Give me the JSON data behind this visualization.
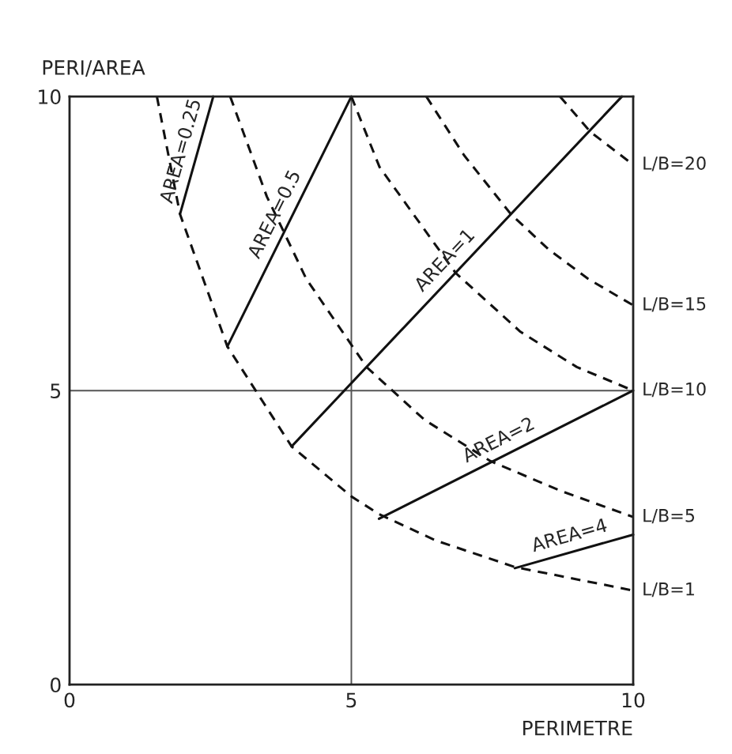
{
  "chart_data": {
    "type": "line",
    "xlabel": "PERIMETRE",
    "ylabel": "PERI/AREA",
    "xlim": [
      0,
      10
    ],
    "ylim": [
      0,
      10
    ],
    "xticks": [
      0,
      5,
      10
    ],
    "yticks": [
      0,
      5,
      10
    ],
    "grid": true,
    "legend": false,
    "marker": "none",
    "series": [
      {
        "name": "AREA=0.25",
        "color": "#111111",
        "line_style": "solid",
        "x": [
          1.96,
          2.55
        ],
        "values": [
          8.0,
          10
        ]
      },
      {
        "name": "AREA=0.5",
        "color": "#111111",
        "line_style": "solid",
        "x": [
          2.8,
          5
        ],
        "values": [
          5.75,
          10
        ]
      },
      {
        "name": "AREA=1",
        "color": "#111111",
        "line_style": "solid",
        "x": [
          3.94,
          9.8
        ],
        "values": [
          4.05,
          10
        ]
      },
      {
        "name": "AREA=2",
        "color": "#111111",
        "line_style": "solid",
        "x": [
          5.49,
          10
        ],
        "values": [
          2.82,
          5.0
        ]
      },
      {
        "name": "AREA=4",
        "color": "#111111",
        "line_style": "solid",
        "x": [
          7.9,
          10
        ],
        "values": [
          1.98,
          2.55
        ]
      },
      {
        "name": "L/B=1",
        "color": "#111111",
        "line_style": "dashed",
        "x": [
          1.55,
          1.96,
          2.8,
          3.94,
          5,
          5.49,
          6.5,
          7.9,
          10
        ],
        "values": [
          10,
          8.0,
          5.75,
          4.05,
          3.2,
          2.9,
          2.45,
          2.0,
          1.6
        ]
      },
      {
        "name": "L/B=5",
        "color": "#111111",
        "line_style": "dashed",
        "x": [
          2.85,
          3.5,
          4.2,
          5.27,
          6.3,
          7.47,
          8.7,
          10
        ],
        "values": [
          10,
          8.3,
          6.9,
          5.4,
          4.5,
          3.8,
          3.3,
          2.85
        ]
      },
      {
        "name": "L/B=10",
        "color": "#111111",
        "line_style": "dashed",
        "x": [
          5,
          5.5,
          6.85,
          8,
          9,
          10
        ],
        "values": [
          10,
          8.8,
          7.0,
          6.0,
          5.4,
          5.0
        ]
      },
      {
        "name": "L/B=15",
        "color": "#111111",
        "line_style": "dashed",
        "x": [
          6.33,
          7.0,
          7.83,
          8.5,
          9.2,
          10
        ],
        "values": [
          10,
          9.0,
          8.0,
          7.4,
          6.9,
          6.45
        ]
      },
      {
        "name": "L/B=20",
        "color": "#111111",
        "line_style": "dashed",
        "x": [
          8.7,
          9.24,
          10
        ],
        "values": [
          10,
          9.4,
          8.84
        ]
      }
    ]
  }
}
